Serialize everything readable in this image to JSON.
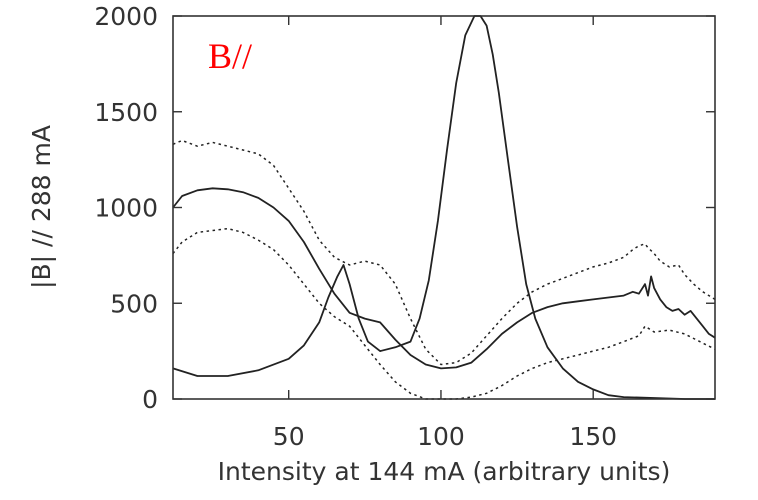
{
  "chart_data": {
    "type": "line",
    "title": "",
    "panel_label": "B//",
    "xlabel": "Intensity at 144 mA (arbitrary units)",
    "ylabel": "|B| // 288 mA",
    "xlim": [
      12,
      190
    ],
    "ylim": [
      0,
      2000
    ],
    "xticks": [
      50,
      100,
      150
    ],
    "yticks": [
      0,
      500,
      1000,
      1500,
      2000
    ],
    "grid": false,
    "colors": {
      "axes": "#333333",
      "lines": "#222222",
      "panel_label": "#ff0000"
    },
    "series": [
      {
        "style": "solid",
        "x": [
          12,
          15,
          20,
          25,
          30,
          35,
          40,
          45,
          50,
          55,
          60,
          65,
          70,
          75,
          80,
          85,
          90,
          95,
          100,
          105,
          110,
          115,
          120,
          125,
          130,
          135,
          140,
          145,
          150,
          155,
          160,
          163,
          165,
          167,
          168,
          169,
          170,
          172,
          174,
          176,
          178,
          180,
          182,
          184,
          186,
          188,
          190
        ],
        "y": [
          1000,
          1060,
          1090,
          1100,
          1095,
          1080,
          1050,
          1000,
          930,
          820,
          680,
          550,
          450,
          420,
          400,
          310,
          230,
          180,
          160,
          165,
          190,
          260,
          340,
          400,
          450,
          480,
          500,
          510,
          520,
          530,
          540,
          560,
          550,
          600,
          540,
          640,
          580,
          520,
          480,
          460,
          470,
          440,
          460,
          420,
          380,
          340,
          320
        ]
      },
      {
        "style": "solid",
        "x": [
          12,
          20,
          30,
          40,
          50,
          55,
          60,
          63,
          66,
          68,
          70,
          73,
          76,
          80,
          85,
          90,
          93,
          96,
          99,
          102,
          105,
          108,
          111,
          113,
          115,
          117,
          119,
          122,
          125,
          128,
          131,
          135,
          140,
          145,
          150,
          155,
          160,
          170,
          180,
          190
        ],
        "y": [
          160,
          120,
          120,
          150,
          210,
          280,
          400,
          530,
          640,
          700,
          600,
          420,
          300,
          250,
          270,
          300,
          420,
          620,
          930,
          1300,
          1650,
          1900,
          2000,
          2000,
          1950,
          1800,
          1600,
          1250,
          900,
          600,
          420,
          270,
          160,
          90,
          50,
          20,
          10,
          5,
          0,
          0
        ]
      },
      {
        "style": "dotted",
        "x": [
          12,
          15,
          20,
          25,
          30,
          35,
          40,
          45,
          50,
          55,
          60,
          65,
          70,
          75,
          80,
          85,
          90,
          95,
          100,
          105,
          110,
          115,
          120,
          125,
          130,
          135,
          140,
          145,
          150,
          155,
          160,
          163,
          165,
          167,
          168,
          170,
          172,
          175,
          178,
          180,
          183,
          186,
          190
        ],
        "y": [
          1330,
          1350,
          1320,
          1340,
          1320,
          1300,
          1280,
          1220,
          1100,
          980,
          830,
          740,
          700,
          720,
          700,
          600,
          420,
          260,
          180,
          190,
          240,
          330,
          420,
          500,
          560,
          600,
          630,
          660,
          690,
          710,
          740,
          780,
          800,
          810,
          790,
          760,
          720,
          690,
          700,
          650,
          600,
          560,
          520
        ]
      },
      {
        "style": "dotted",
        "x": [
          12,
          15,
          20,
          25,
          30,
          35,
          40,
          45,
          50,
          55,
          60,
          65,
          70,
          75,
          80,
          85,
          90,
          95,
          100,
          105,
          110,
          115,
          120,
          125,
          130,
          135,
          140,
          145,
          150,
          155,
          160,
          165,
          167,
          170,
          175,
          180,
          185,
          190
        ],
        "y": [
          760,
          820,
          870,
          880,
          890,
          870,
          830,
          780,
          700,
          600,
          500,
          430,
          380,
          280,
          180,
          90,
          30,
          0,
          0,
          0,
          10,
          30,
          70,
          120,
          160,
          190,
          210,
          230,
          250,
          270,
          300,
          330,
          380,
          350,
          360,
          340,
          300,
          260
        ]
      }
    ]
  }
}
